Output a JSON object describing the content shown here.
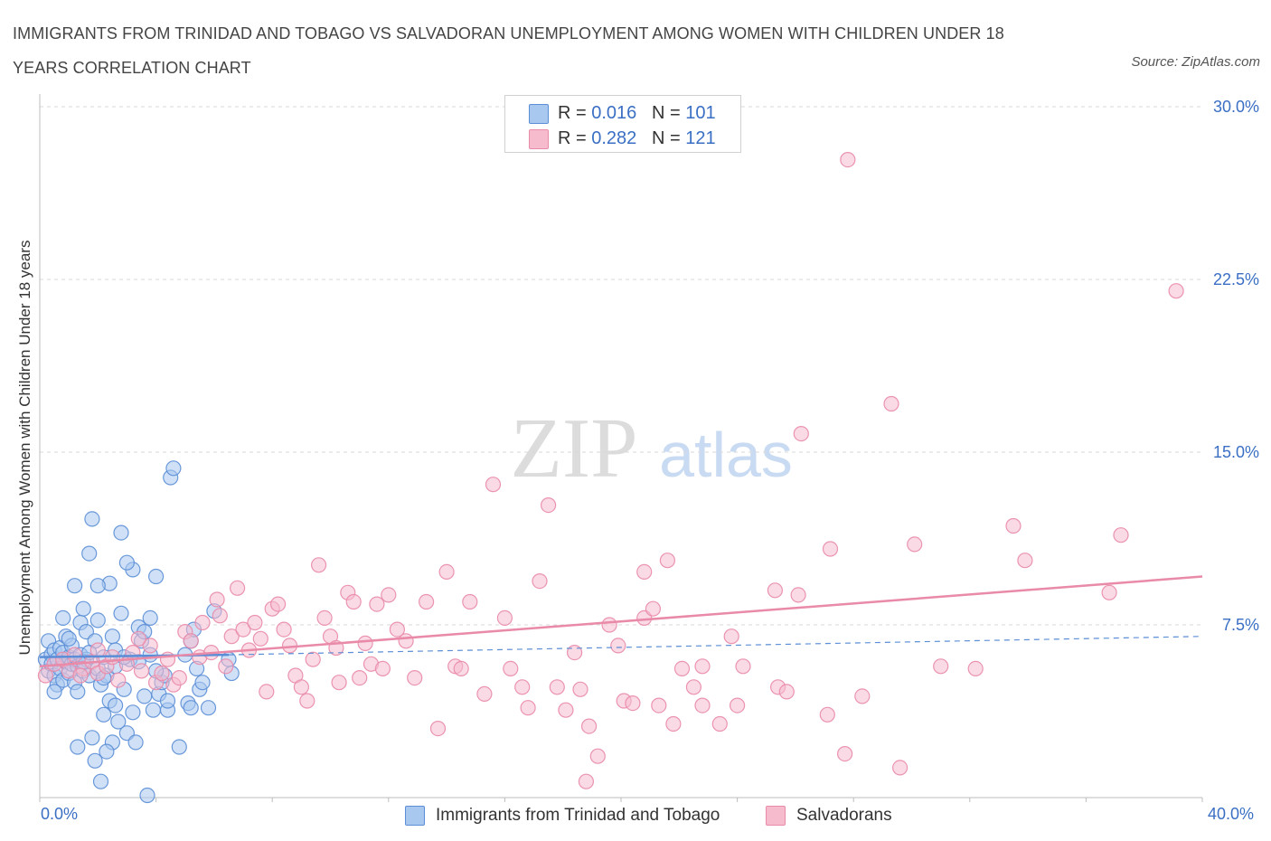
{
  "title": "IMMIGRANTS FROM TRINIDAD AND TOBAGO VS SALVADORAN UNEMPLOYMENT AMONG WOMEN WITH CHILDREN UNDER 18 YEARS CORRELATION CHART",
  "source": "Source: ZipAtlas.com",
  "watermark": {
    "zip": "ZIP",
    "atlas": "atlas"
  },
  "legend": {
    "rows": [
      {
        "r_label": "R = ",
        "r_value": "0.016",
        "n_label": "N = ",
        "n_value": "101",
        "color": "#a9c8f0"
      },
      {
        "r_label": "R = ",
        "r_value": "0.282",
        "n_label": "N = ",
        "n_value": "121",
        "color": "#f6bccd"
      }
    ]
  },
  "chart_data": {
    "type": "scatter",
    "title": "IMMIGRANTS FROM TRINIDAD AND TOBAGO VS SALVADORAN UNEMPLOYMENT AMONG WOMEN WITH CHILDREN UNDER 18 YEARS CORRELATION CHART",
    "xlabel": "",
    "ylabel": "Unemployment Among Women with Children Under 18 years",
    "xlim": [
      0,
      40
    ],
    "ylim": [
      0,
      30
    ],
    "x_tick_labels": [
      "0.0%",
      "40.0%"
    ],
    "y_ticks": [
      7.5,
      15.0,
      22.5,
      30.0
    ],
    "y_tick_labels": [
      "7.5%",
      "15.0%",
      "22.5%",
      "30.0%"
    ],
    "grid": true,
    "legend_position": "bottom",
    "series": [
      {
        "name": "Immigrants from Trinidad and Tobago",
        "color": "#5b8ed6",
        "fill": "#a9c8f0",
        "trend": {
          "x": [
            0,
            6.5
          ],
          "y": [
            6.1,
            6.2
          ],
          "style": "solid"
        },
        "trend_extension": {
          "x": [
            6.5,
            40
          ],
          "y": [
            6.2,
            7.0
          ],
          "style": "dashed"
        },
        "points": [
          [
            0.2,
            6.0
          ],
          [
            0.3,
            5.5
          ],
          [
            0.3,
            6.8
          ],
          [
            0.4,
            6.2
          ],
          [
            0.4,
            5.8
          ],
          [
            0.5,
            6.4
          ],
          [
            0.5,
            5.3
          ],
          [
            0.6,
            6.0
          ],
          [
            0.6,
            4.9
          ],
          [
            0.7,
            6.5
          ],
          [
            0.7,
            5.6
          ],
          [
            0.8,
            6.3
          ],
          [
            0.8,
            5.1
          ],
          [
            0.9,
            5.9
          ],
          [
            0.9,
            7.0
          ],
          [
            1.0,
            6.1
          ],
          [
            1.0,
            5.4
          ],
          [
            1.1,
            5.8
          ],
          [
            1.1,
            6.6
          ],
          [
            1.2,
            6.0
          ],
          [
            1.2,
            5.0
          ],
          [
            1.3,
            5.7
          ],
          [
            1.3,
            4.6
          ],
          [
            1.4,
            6.2
          ],
          [
            1.4,
            7.6
          ],
          [
            1.5,
            5.5
          ],
          [
            1.5,
            8.2
          ],
          [
            1.6,
            6.0
          ],
          [
            1.6,
            7.2
          ],
          [
            1.7,
            5.3
          ],
          [
            1.7,
            10.6
          ],
          [
            1.8,
            12.1
          ],
          [
            1.8,
            2.6
          ],
          [
            1.9,
            6.8
          ],
          [
            1.9,
            1.6
          ],
          [
            2.0,
            5.6
          ],
          [
            2.0,
            7.7
          ],
          [
            2.1,
            4.9
          ],
          [
            2.1,
            0.7
          ],
          [
            2.2,
            6.1
          ],
          [
            2.2,
            3.6
          ],
          [
            2.3,
            5.3
          ],
          [
            2.4,
            9.3
          ],
          [
            2.4,
            4.2
          ],
          [
            2.5,
            7.0
          ],
          [
            2.5,
            2.4
          ],
          [
            2.6,
            5.7
          ],
          [
            2.6,
            6.4
          ],
          [
            2.7,
            3.3
          ],
          [
            2.8,
            8.0
          ],
          [
            2.9,
            4.7
          ],
          [
            3.0,
            2.8
          ],
          [
            3.1,
            6.0
          ],
          [
            3.2,
            3.7
          ],
          [
            3.2,
            9.9
          ],
          [
            3.3,
            2.4
          ],
          [
            3.4,
            7.4
          ],
          [
            3.5,
            6.8
          ],
          [
            3.6,
            4.4
          ],
          [
            3.7,
            0.1
          ],
          [
            3.8,
            7.8
          ],
          [
            3.9,
            3.8
          ],
          [
            4.0,
            9.6
          ],
          [
            4.1,
            4.5
          ],
          [
            4.2,
            5.0
          ],
          [
            4.3,
            5.3
          ],
          [
            4.4,
            3.8
          ],
          [
            4.5,
            13.9
          ],
          [
            4.6,
            14.3
          ],
          [
            4.8,
            2.2
          ],
          [
            5.0,
            6.2
          ],
          [
            5.1,
            4.1
          ],
          [
            5.2,
            6.8
          ],
          [
            5.3,
            7.3
          ],
          [
            5.4,
            5.6
          ],
          [
            5.5,
            4.7
          ],
          [
            5.6,
            5.0
          ],
          [
            5.8,
            3.9
          ],
          [
            6.0,
            8.1
          ],
          [
            6.5,
            6.0
          ],
          [
            2.0,
            9.2
          ],
          [
            1.2,
            9.2
          ],
          [
            2.8,
            11.5
          ],
          [
            3.0,
            10.2
          ],
          [
            0.8,
            7.8
          ],
          [
            1.5,
            5.9
          ],
          [
            2.2,
            5.2
          ],
          [
            2.6,
            4.0
          ],
          [
            3.4,
            5.9
          ],
          [
            3.6,
            7.2
          ],
          [
            4.0,
            5.5
          ],
          [
            0.5,
            4.6
          ],
          [
            1.0,
            6.9
          ],
          [
            1.7,
            6.3
          ],
          [
            2.9,
            6.1
          ],
          [
            4.4,
            4.2
          ],
          [
            5.2,
            3.9
          ],
          [
            6.6,
            5.4
          ],
          [
            1.3,
            2.2
          ],
          [
            3.8,
            6.2
          ],
          [
            2.3,
            2.0
          ]
        ]
      },
      {
        "name": "Salvadorans",
        "color": "#e98aa8",
        "fill": "#f6bccd",
        "trend": {
          "x": [
            0,
            40
          ],
          "y": [
            5.7,
            9.6
          ],
          "style": "solid"
        },
        "points": [
          [
            0.2,
            5.3
          ],
          [
            0.5,
            5.8
          ],
          [
            0.8,
            6.0
          ],
          [
            1.0,
            5.5
          ],
          [
            1.2,
            6.2
          ],
          [
            1.5,
            5.6
          ],
          [
            1.8,
            5.9
          ],
          [
            2.0,
            5.4
          ],
          [
            2.3,
            5.7
          ],
          [
            2.5,
            6.1
          ],
          [
            2.7,
            5.1
          ],
          [
            3.0,
            5.8
          ],
          [
            3.2,
            6.3
          ],
          [
            3.5,
            5.5
          ],
          [
            3.8,
            6.6
          ],
          [
            4.0,
            5.0
          ],
          [
            4.2,
            5.4
          ],
          [
            4.4,
            6.0
          ],
          [
            4.6,
            4.9
          ],
          [
            4.8,
            5.2
          ],
          [
            5.0,
            7.2
          ],
          [
            5.2,
            6.8
          ],
          [
            5.5,
            6.1
          ],
          [
            5.6,
            7.6
          ],
          [
            5.9,
            6.3
          ],
          [
            6.1,
            8.6
          ],
          [
            6.2,
            7.9
          ],
          [
            6.4,
            5.7
          ],
          [
            6.6,
            7.0
          ],
          [
            6.8,
            9.1
          ],
          [
            7.0,
            7.3
          ],
          [
            7.2,
            6.4
          ],
          [
            7.4,
            7.6
          ],
          [
            7.6,
            6.9
          ],
          [
            7.8,
            4.6
          ],
          [
            8.0,
            8.2
          ],
          [
            8.2,
            8.4
          ],
          [
            8.4,
            7.3
          ],
          [
            8.6,
            6.6
          ],
          [
            8.8,
            5.3
          ],
          [
            9.0,
            4.8
          ],
          [
            9.2,
            4.2
          ],
          [
            9.4,
            6.0
          ],
          [
            9.6,
            10.1
          ],
          [
            9.8,
            7.8
          ],
          [
            10.0,
            7.0
          ],
          [
            10.2,
            6.5
          ],
          [
            10.6,
            8.9
          ],
          [
            10.8,
            8.5
          ],
          [
            11.0,
            5.2
          ],
          [
            11.2,
            6.7
          ],
          [
            11.4,
            5.8
          ],
          [
            11.6,
            8.4
          ],
          [
            11.8,
            5.6
          ],
          [
            12.0,
            8.8
          ],
          [
            12.3,
            7.3
          ],
          [
            12.6,
            6.8
          ],
          [
            12.9,
            5.2
          ],
          [
            13.3,
            8.5
          ],
          [
            13.7,
            3.0
          ],
          [
            14.0,
            9.8
          ],
          [
            14.3,
            5.7
          ],
          [
            14.5,
            5.6
          ],
          [
            14.8,
            8.5
          ],
          [
            15.3,
            4.5
          ],
          [
            15.6,
            13.6
          ],
          [
            16.0,
            7.8
          ],
          [
            16.2,
            5.6
          ],
          [
            16.6,
            4.8
          ],
          [
            16.8,
            3.9
          ],
          [
            17.2,
            9.4
          ],
          [
            17.5,
            12.7
          ],
          [
            17.8,
            4.8
          ],
          [
            18.1,
            3.8
          ],
          [
            18.4,
            6.3
          ],
          [
            18.6,
            4.7
          ],
          [
            18.9,
            3.1
          ],
          [
            19.2,
            1.8
          ],
          [
            19.6,
            7.5
          ],
          [
            19.9,
            6.6
          ],
          [
            20.1,
            4.2
          ],
          [
            20.4,
            4.1
          ],
          [
            20.8,
            7.8
          ],
          [
            20.8,
            9.8
          ],
          [
            21.1,
            8.2
          ],
          [
            21.3,
            4.0
          ],
          [
            21.6,
            10.3
          ],
          [
            21.8,
            3.2
          ],
          [
            22.1,
            5.6
          ],
          [
            22.5,
            4.8
          ],
          [
            22.8,
            4.0
          ],
          [
            22.8,
            5.7
          ],
          [
            23.4,
            3.2
          ],
          [
            23.8,
            7.0
          ],
          [
            24.0,
            4.0
          ],
          [
            24.2,
            5.7
          ],
          [
            25.3,
            9.0
          ],
          [
            25.4,
            4.8
          ],
          [
            25.7,
            4.6
          ],
          [
            26.1,
            8.8
          ],
          [
            26.2,
            15.8
          ],
          [
            27.1,
            3.6
          ],
          [
            27.2,
            10.8
          ],
          [
            27.7,
            1.9
          ],
          [
            27.8,
            27.7
          ],
          [
            28.3,
            4.4
          ],
          [
            29.3,
            17.1
          ],
          [
            29.6,
            1.3
          ],
          [
            30.1,
            11.0
          ],
          [
            31.0,
            5.7
          ],
          [
            32.2,
            5.6
          ],
          [
            33.5,
            11.8
          ],
          [
            33.9,
            10.3
          ],
          [
            36.8,
            8.9
          ],
          [
            37.2,
            11.4
          ],
          [
            39.1,
            22.0
          ],
          [
            18.8,
            0.7
          ],
          [
            10.3,
            5.0
          ],
          [
            2.0,
            6.4
          ],
          [
            1.4,
            5.3
          ],
          [
            3.4,
            6.9
          ]
        ]
      }
    ]
  },
  "bottom_legend": [
    {
      "label": "Immigrants from Trinidad and Tobago",
      "color": "#a9c8f0"
    },
    {
      "label": "Salvadorans",
      "color": "#f6bccd"
    }
  ]
}
